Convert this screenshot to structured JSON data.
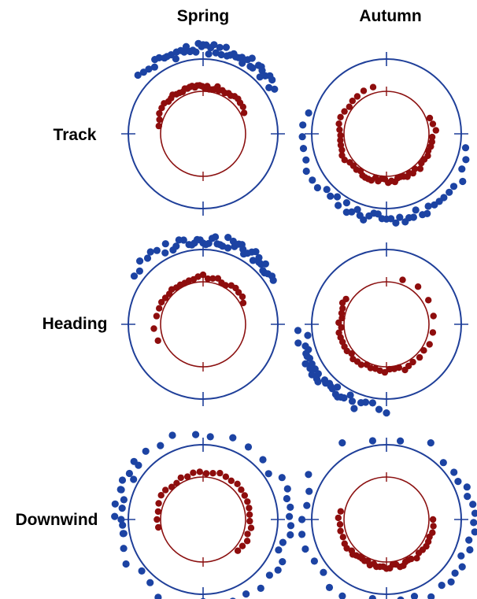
{
  "columns": [
    "Spring",
    "Autumn"
  ],
  "rows": [
    "Track",
    "Heading",
    "Downwind"
  ],
  "colors": {
    "outer": "#1f3f99",
    "inner": "#8b1010",
    "outer_point": "#1c43a3",
    "inner_point": "#8e0d0d"
  },
  "chart_data": [
    {
      "type": "scatter",
      "season": "Spring",
      "measure": "Track",
      "outer_points_deg": [
        -48,
        -44,
        -40,
        -36,
        -33,
        -30,
        -27,
        -25,
        -22,
        -20,
        -18,
        -15,
        -13,
        -11,
        -9,
        -7,
        -5,
        -3,
        -1,
        0,
        2,
        4,
        5,
        7,
        9,
        11,
        13,
        15,
        17,
        19,
        21,
        23,
        25,
        27,
        29,
        31,
        33,
        35,
        37,
        39,
        41,
        43,
        45,
        47,
        49,
        52,
        55,
        58
      ],
      "inner_points_deg": [
        -80,
        -72,
        -65,
        -58,
        -52,
        -47,
        -42,
        -38,
        -34,
        -30,
        -26,
        -22,
        -19,
        -16,
        -13,
        -10,
        -7,
        -4,
        -1,
        2,
        5,
        8,
        11,
        14,
        17,
        20,
        24,
        28,
        32,
        36,
        40,
        45,
        50,
        56,
        63
      ]
    },
    {
      "type": "scatter",
      "season": "Autumn",
      "measure": "Track",
      "outer_points_deg": [
        100,
        108,
        115,
        122,
        128,
        133,
        138,
        142,
        146,
        150,
        153,
        156,
        159,
        162,
        165,
        168,
        171,
        174,
        177,
        180,
        183,
        186,
        189,
        192,
        195,
        198,
        201,
        204,
        207,
        210,
        214,
        218,
        222,
        227,
        232,
        238,
        245,
        252,
        260,
        268,
        276,
        285
      ],
      "inner_points_deg": [
        70,
        78,
        86,
        94,
        100,
        106,
        112,
        118,
        124,
        130,
        136,
        141,
        146,
        150,
        154,
        158,
        162,
        166,
        170,
        174,
        178,
        182,
        186,
        190,
        194,
        198,
        202,
        206,
        210,
        215,
        220,
        226,
        232,
        238,
        244,
        250,
        256,
        262,
        268,
        275,
        282,
        290,
        298,
        306,
        314,
        322,
        332,
        344
      ]
    },
    {
      "type": "scatter",
      "season": "Spring",
      "measure": "Heading",
      "outer_points_deg": [
        -55,
        -50,
        -45,
        -40,
        -36,
        -32,
        -28,
        -25,
        -22,
        -19,
        -16,
        -13,
        -10,
        -8,
        -6,
        -4,
        -2,
        0,
        2,
        4,
        6,
        8,
        10,
        12,
        14,
        16,
        18,
        20,
        22,
        24,
        26,
        28,
        30,
        32,
        34,
        36,
        38,
        40,
        42,
        44,
        46,
        48,
        50,
        52,
        55,
        58
      ],
      "inner_points_deg": [
        -110,
        -95,
        -80,
        -70,
        -62,
        -55,
        -48,
        -42,
        -36,
        -30,
        -24,
        -18,
        -12,
        -6,
        0,
        6,
        12,
        18,
        24,
        30,
        36,
        42,
        48,
        55,
        62
      ]
    },
    {
      "type": "scatter",
      "season": "Autumn",
      "measure": "Heading",
      "outer_points_deg": [
        180,
        185,
        190,
        195,
        198,
        201,
        204,
        207,
        210,
        212,
        214,
        216,
        218,
        220,
        222,
        224,
        226,
        228,
        230,
        232,
        234,
        236,
        238,
        240,
        242,
        244,
        246,
        248,
        250,
        252,
        255,
        258,
        262,
        266
      ],
      "inner_points_deg": [
        20,
        40,
        60,
        80,
        100,
        115,
        125,
        135,
        145,
        152,
        158,
        164,
        170,
        176,
        182,
        188,
        194,
        200,
        206,
        212,
        218,
        224,
        230,
        236,
        242,
        248,
        254,
        260,
        266,
        272,
        278,
        284,
        290,
        296,
        302
      ]
    },
    {
      "type": "scatter",
      "season": "Spring",
      "measure": "Downwind",
      "outer_points_deg": [
        -100,
        -94,
        -88,
        -82,
        -76,
        -70,
        -64,
        -58,
        -50,
        -40,
        -30,
        -20,
        -5,
        5,
        20,
        32,
        45,
        55,
        62,
        70,
        76,
        82,
        88,
        94,
        100,
        106,
        112,
        118,
        124,
        130,
        140,
        150,
        160,
        170,
        180,
        190,
        200,
        210,
        220,
        230,
        240,
        250,
        260,
        270,
        280,
        290,
        300,
        310
      ],
      "inner_points_deg": [
        -100,
        -90,
        -80,
        -70,
        -60,
        -52,
        -44,
        -36,
        -28,
        -20,
        -12,
        -4,
        4,
        12,
        20,
        28,
        36,
        44,
        52,
        60,
        68,
        76,
        84,
        92,
        100,
        108,
        116,
        124,
        132
      ]
    },
    {
      "type": "scatter",
      "season": "Autumn",
      "measure": "Downwind",
      "outer_points_deg": [
        -30,
        -10,
        10,
        30,
        45,
        55,
        62,
        68,
        74,
        80,
        86,
        92,
        98,
        104,
        110,
        116,
        122,
        128,
        134,
        140,
        150,
        160,
        170,
        180,
        190,
        200,
        210,
        220,
        230,
        240,
        250,
        260,
        270,
        280,
        290,
        300
      ],
      "inner_points_deg": [
        90,
        98,
        106,
        112,
        118,
        124,
        130,
        136,
        142,
        148,
        152,
        156,
        160,
        164,
        168,
        172,
        176,
        180,
        184,
        188,
        192,
        196,
        200,
        204,
        208,
        212,
        216,
        220,
        224,
        228,
        234,
        240,
        248,
        256,
        264,
        272,
        280
      ]
    }
  ]
}
